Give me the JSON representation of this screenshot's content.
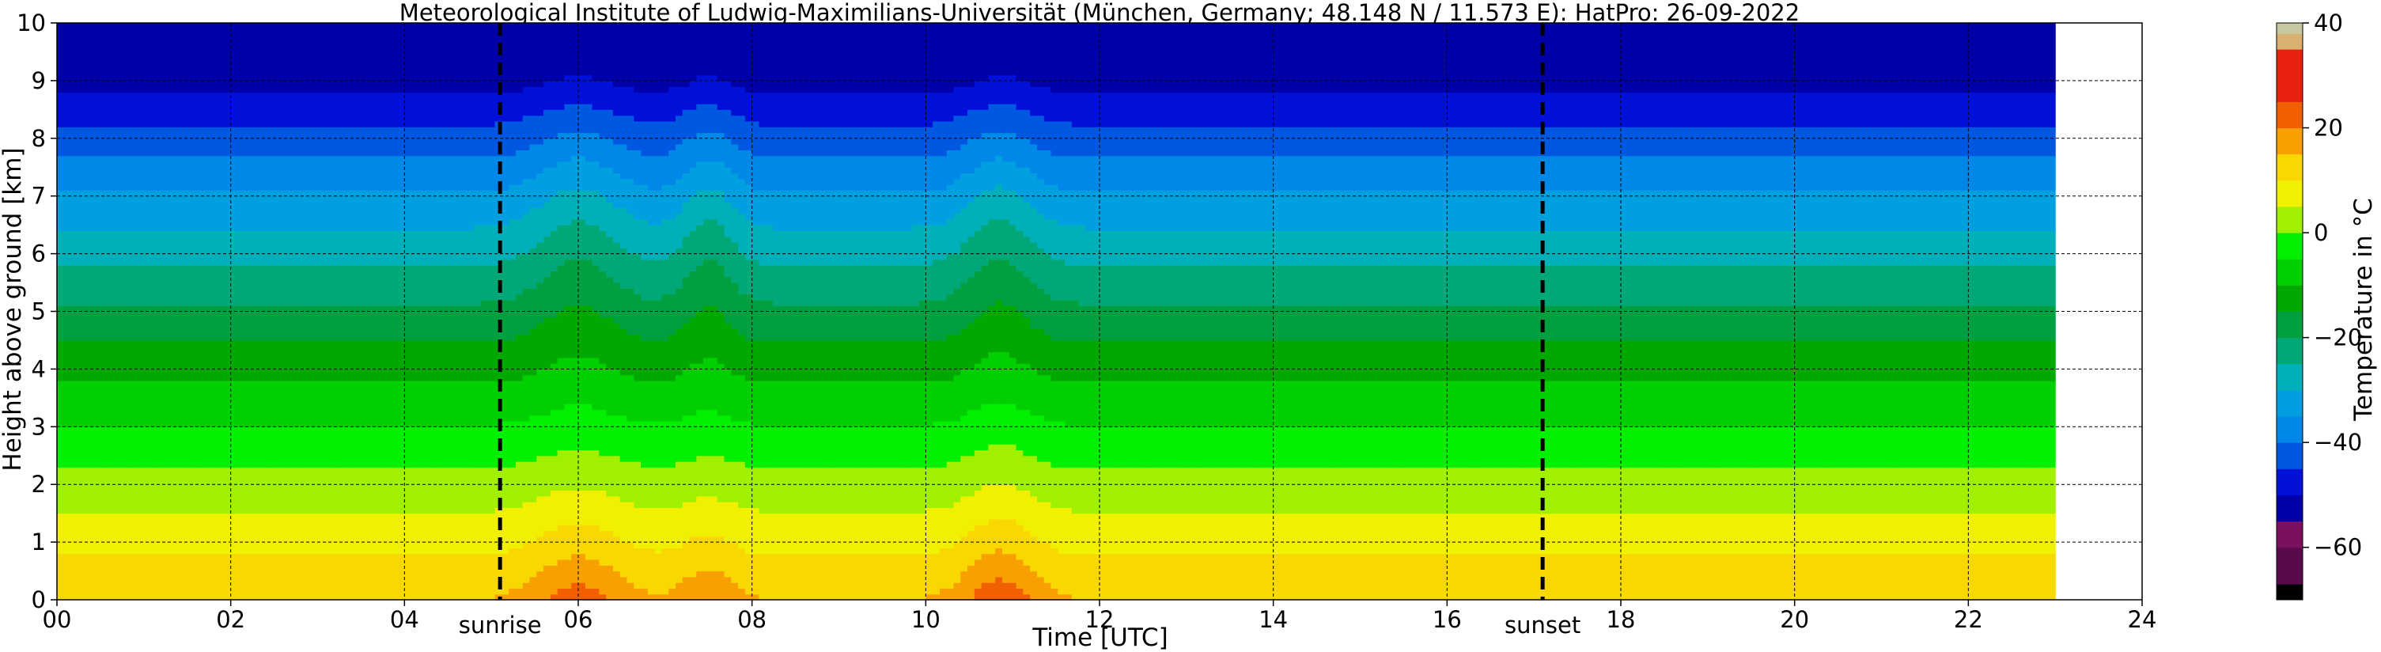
{
  "chart_data": {
    "type": "heatmap",
    "title": "Meteorological Institute of Ludwig-Maximilians-Universität (München, Germany; 48.148 N / 11.573 E):    HatPro: 26-09-2022",
    "xlabel": "Time [UTC]",
    "ylabel": "Height above ground [km]",
    "xlim": [
      0,
      24
    ],
    "ylim": [
      0,
      10
    ],
    "x_ticks": [
      "00",
      "02",
      "04",
      "06",
      "08",
      "10",
      "12",
      "14",
      "16",
      "18",
      "20",
      "22",
      "24"
    ],
    "y_ticks": [
      "0",
      "1",
      "2",
      "3",
      "4",
      "5",
      "6",
      "7",
      "8",
      "9",
      "10"
    ],
    "grid": true,
    "data_end_time": 23.0,
    "vertical_markers": [
      {
        "label": "sunrise",
        "x": 5.1
      },
      {
        "label": "sunset",
        "x": 17.1
      }
    ],
    "colorbar": {
      "label": "Temperature in $^\\circ$C",
      "label_display": "Temperature in °C",
      "range": [
        -70,
        40
      ],
      "ticks": [
        "40",
        "20",
        "0",
        "−20",
        "−40",
        "−60"
      ],
      "tick_values": [
        40,
        20,
        0,
        -20,
        -40,
        -60
      ],
      "colors": [
        {
          "from": -70,
          "to": -67,
          "color": "#000000"
        },
        {
          "from": -67,
          "to": -60,
          "color": "#5a0a4c"
        },
        {
          "from": -60,
          "to": -55,
          "color": "#7a1060"
        },
        {
          "from": -55,
          "to": -50,
          "color": "#0000a8"
        },
        {
          "from": -50,
          "to": -45,
          "color": "#0010d8"
        },
        {
          "from": -45,
          "to": -40,
          "color": "#0058e0"
        },
        {
          "from": -40,
          "to": -35,
          "color": "#0088e8"
        },
        {
          "from": -35,
          "to": -30,
          "color": "#00a0e0"
        },
        {
          "from": -30,
          "to": -25,
          "color": "#00b0b8"
        },
        {
          "from": -25,
          "to": -20,
          "color": "#00a878"
        },
        {
          "from": -20,
          "to": -15,
          "color": "#00a040"
        },
        {
          "from": -15,
          "to": -10,
          "color": "#00a800"
        },
        {
          "from": -10,
          "to": -5,
          "color": "#00d000"
        },
        {
          "from": -5,
          "to": 0,
          "color": "#00f000"
        },
        {
          "from": 0,
          "to": 5,
          "color": "#a0f000"
        },
        {
          "from": 5,
          "to": 10,
          "color": "#f0f000"
        },
        {
          "from": 10,
          "to": 15,
          "color": "#f8d800"
        },
        {
          "from": 15,
          "to": 20,
          "color": "#f8a000"
        },
        {
          "from": 20,
          "to": 25,
          "color": "#f06000"
        },
        {
          "from": 25,
          "to": 35,
          "color": "#e82010"
        },
        {
          "from": 35,
          "to": 38,
          "color": "#d8b070"
        },
        {
          "from": 38,
          "to": 40,
          "color": "#c8c8a0"
        }
      ]
    },
    "profile": {
      "base_temp_c": 15,
      "lapse_rate_c_per_km": 6.5,
      "tropopause_km": 9.0,
      "tropopause_temp_c": -52
    },
    "warm_events": [
      {
        "center_time": 6.0,
        "width_h": 0.55,
        "height_km": 1.6,
        "dT_c": 8
      },
      {
        "center_time": 7.5,
        "width_h": 0.35,
        "height_km": 1.4,
        "dT_c": 5
      },
      {
        "center_time": 10.85,
        "width_h": 0.45,
        "height_km": 1.8,
        "dT_c": 9
      }
    ]
  }
}
